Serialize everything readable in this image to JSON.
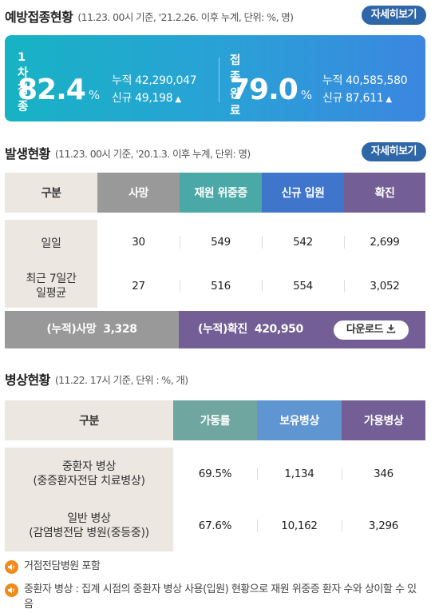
{
  "vaccination": {
    "title": "예방접종현황",
    "subtitle": "(11.23. 00시 기준, '21.2.26. 이후 누계, 단위: %, 명)",
    "more_label": "자세히보기",
    "first": {
      "label": "1차접종",
      "rate": "82.4",
      "unit": "%",
      "cum_label": "누적",
      "cum_value": "42,290,047",
      "new_label": "신규",
      "new_value": "49,198"
    },
    "complete": {
      "label": "접종완료",
      "rate": "79.0",
      "unit": "%",
      "cum_label": "누적",
      "cum_value": "40,585,580",
      "new_label": "신규",
      "new_value": "87,611"
    },
    "colors": {
      "gradient_start": "#17b3c4",
      "gradient_end": "#3b86e0"
    }
  },
  "outbreak": {
    "title": "발생현황",
    "subtitle": "(11.23. 00시 기준, '20.1.3. 이후 누계, 단위: 명)",
    "more_label": "자세히보기",
    "headers": [
      "구분",
      "사망",
      "재원 위중증",
      "신규 입원",
      "확진"
    ],
    "header_colors": [
      "#ece7e0",
      "#999999",
      "#4aa9a6",
      "#3f76cc",
      "#735f95"
    ],
    "rows": [
      {
        "label": "일일",
        "values": [
          "30",
          "549",
          "542",
          "2,699"
        ]
      },
      {
        "label": "최근 7일간\n일평균",
        "values": [
          "27",
          "516",
          "554",
          "3,052"
        ]
      }
    ],
    "total_death_label": "(누적)사망",
    "total_death_value": "3,328",
    "total_confirmed_label": "(누적)확진",
    "total_confirmed_value": "420,950",
    "download_label": "다운로드"
  },
  "beds": {
    "title": "병상현황",
    "subtitle": "(11.22. 17시 기준, 단위 : %, 개)",
    "headers": [
      "구분",
      "가동률",
      "보유병상",
      "가용병상"
    ],
    "header_colors": [
      "#ece7e0",
      "#6fa69f",
      "#5f95d0",
      "#735f95"
    ],
    "rows": [
      {
        "label": "중환자 병상\n(중증환자전담 치료병상)",
        "values": [
          "69.5%",
          "1,134",
          "346"
        ]
      },
      {
        "label": "일반 병상\n(감염병전담 병원(중등중))",
        "values": [
          "67.6%",
          "10,162",
          "3,296"
        ]
      }
    ]
  },
  "notes": [
    "거점전담병원 포함",
    "중환자 병상 : 집계 시점의 중환자 병상 사용(입원) 현황으로 재원 위중증 환자 수와 상이할 수 있음"
  ],
  "icons": {
    "trend": "up-triangle-icon",
    "download": "download-icon",
    "note": "speaker-icon"
  }
}
